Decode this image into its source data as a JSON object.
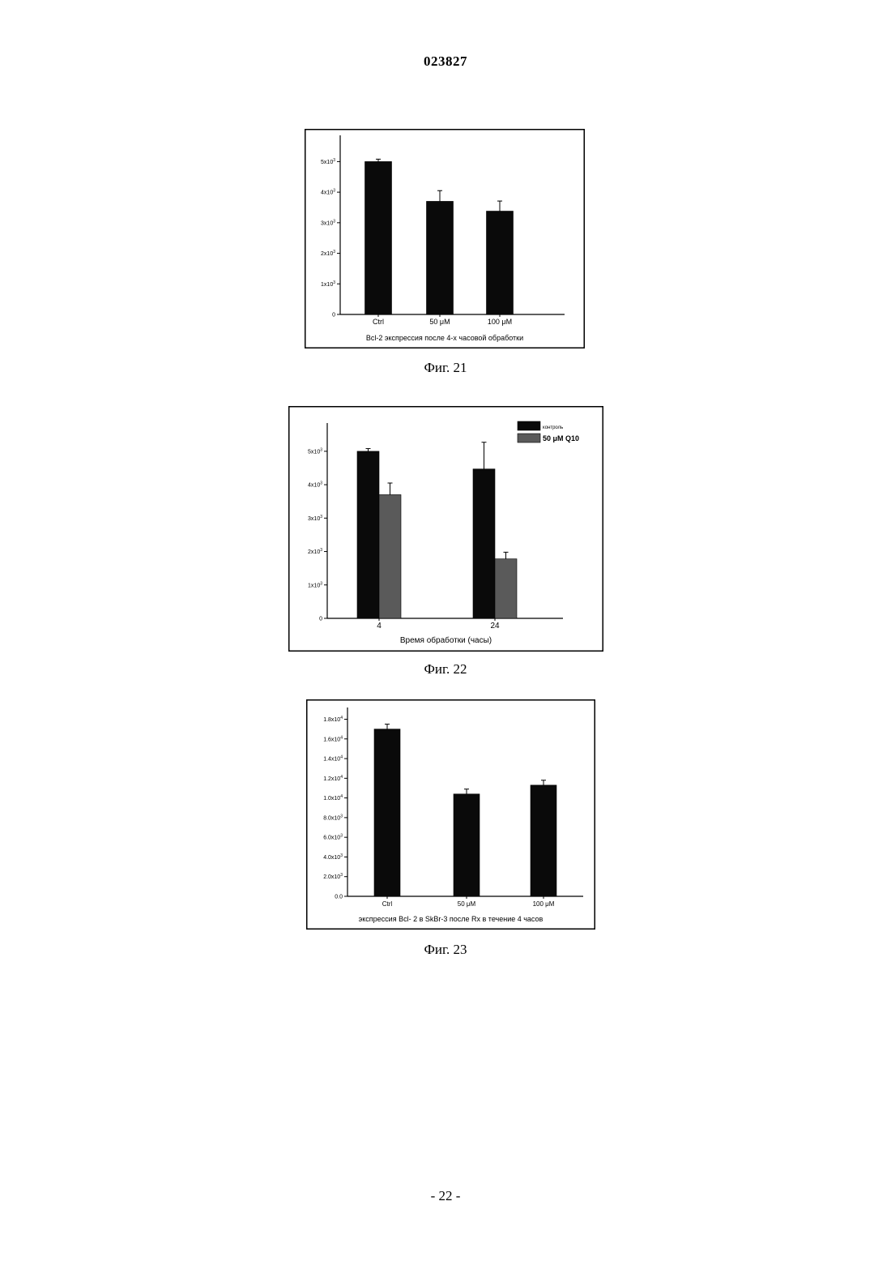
{
  "document": {
    "number": "023827",
    "page_number": "- 22 -"
  },
  "colors": {
    "dark_bar": "#0a0a0a",
    "gray_bar": "#5a5a5a"
  },
  "figures": [
    {
      "caption": "Фиг. 21"
    },
    {
      "caption": "Фиг. 22"
    },
    {
      "caption": "Фиг. 23"
    }
  ],
  "chart_data": [
    {
      "type": "bar",
      "title": "",
      "xlabel": "Bcl-2 экспрессия после 4-х часовой обработки",
      "ylabel": "",
      "categories": [
        "Ctrl",
        "50 μM",
        "100 μM"
      ],
      "series": [
        {
          "values": [
            5000,
            3700,
            3380
          ],
          "errors": [
            80,
            350,
            330
          ]
        }
      ],
      "ylim": [
        0,
        5700
      ],
      "y_ticks": [
        0,
        1000,
        2000,
        3000,
        4000,
        5000
      ],
      "y_tick_labels": [
        {
          "text": "0",
          "exp": ""
        },
        {
          "text": "1x10",
          "exp": "3"
        },
        {
          "text": "2x10",
          "exp": "3"
        },
        {
          "text": "3x10",
          "exp": "3"
        },
        {
          "text": "4x10",
          "exp": "3"
        },
        {
          "text": "5x10",
          "exp": "3"
        }
      ],
      "grid": false,
      "legend": "none"
    },
    {
      "type": "bar",
      "title": "",
      "xlabel": "Время обработки (часы)",
      "ylabel": "",
      "categories": [
        "4",
        "24"
      ],
      "series": [
        {
          "name": "контроль",
          "values": [
            5000,
            4470
          ],
          "errors": [
            80,
            800
          ]
        },
        {
          "name": "50 μM Q10",
          "values": [
            3700,
            1780
          ],
          "errors": [
            350,
            200
          ]
        }
      ],
      "ylim": [
        0,
        5700
      ],
      "y_ticks": [
        0,
        1000,
        2000,
        3000,
        4000,
        5000
      ],
      "y_tick_labels": [
        {
          "text": "0",
          "exp": ""
        },
        {
          "text": "1x10",
          "exp": "3"
        },
        {
          "text": "2x10",
          "exp": "3"
        },
        {
          "text": "3x10",
          "exp": "3"
        },
        {
          "text": "4x10",
          "exp": "3"
        },
        {
          "text": "5x10",
          "exp": "3"
        }
      ],
      "grid": false,
      "legend": "top-right"
    },
    {
      "type": "bar",
      "title": "",
      "xlabel": "экспрессия Bcl- 2 в SkBr-3  после Rx в течение 4 часов",
      "ylabel": "",
      "categories": [
        "Ctrl",
        "50 μM",
        "100 μM"
      ],
      "series": [
        {
          "values": [
            17000,
            10400,
            11300
          ],
          "errors": [
            500,
            500,
            500
          ]
        }
      ],
      "ylim": [
        0,
        18700
      ],
      "y_ticks": [
        0,
        2000,
        4000,
        6000,
        8000,
        10000,
        12000,
        14000,
        16000,
        18000
      ],
      "y_tick_labels": [
        {
          "text": "0.0",
          "exp": ""
        },
        {
          "text": "2.0x10",
          "exp": "3"
        },
        {
          "text": "4.0x10",
          "exp": "3"
        },
        {
          "text": "6.0x10",
          "exp": "3"
        },
        {
          "text": "8.0x10",
          "exp": "3"
        },
        {
          "text": "1.0x10",
          "exp": "4"
        },
        {
          "text": "1.2x10",
          "exp": "4"
        },
        {
          "text": "1.4x10",
          "exp": "4"
        },
        {
          "text": "1.6x10",
          "exp": "4"
        },
        {
          "text": "1.8x10",
          "exp": "4"
        }
      ],
      "grid": false,
      "legend": "none"
    }
  ]
}
